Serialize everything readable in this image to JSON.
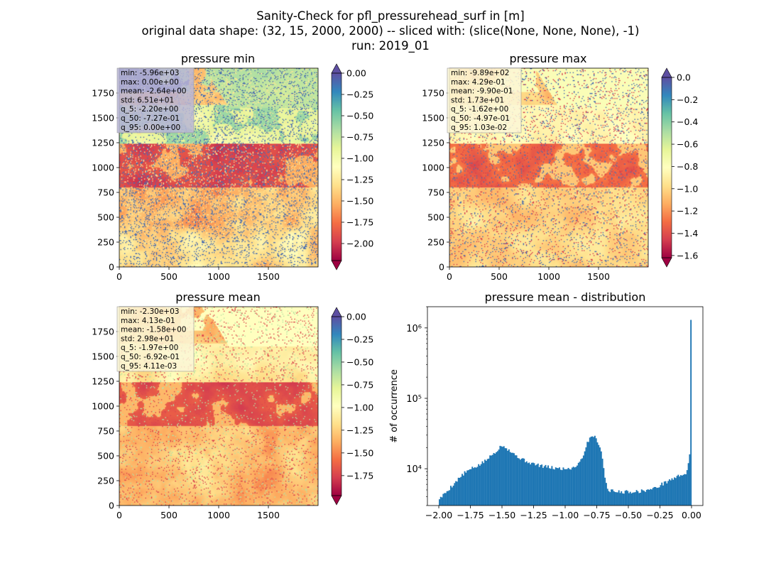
{
  "figure": {
    "title_lines": [
      "Sanity-Check for pfl_pressurehead_surf in [m]",
      "original data shape: (32, 15, 2000, 2000) -- sliced with: (slice(None, None, None), -1)",
      "run: 2019_01"
    ]
  },
  "colors": {
    "map_palette": [
      "#9e0142",
      "#d53e4f",
      "#f46d43",
      "#fdae61",
      "#fee08b",
      "#ffffbf",
      "#e6f598",
      "#abdda4",
      "#66c2a5",
      "#3288bd",
      "#5e4fa2"
    ],
    "histogram_bar": "#1f77b4"
  },
  "chart_data": [
    {
      "type": "heatmap",
      "title": "pressure min",
      "xlim": [
        0,
        2000
      ],
      "ylim": [
        0,
        2000
      ],
      "xticks": [
        0,
        500,
        1000,
        1500
      ],
      "yticks": [
        0,
        250,
        500,
        750,
        1000,
        1250,
        1500,
        1750
      ],
      "colorbar": {
        "vmin": -2.2,
        "vmax": 0.0,
        "ticks": [
          0.0,
          -0.25,
          -0.5,
          -0.75,
          -1.0,
          -1.25,
          -1.5,
          -1.75,
          -2.0
        ],
        "tick_labels": [
          "0.00",
          "−0.25",
          "−0.50",
          "−0.75",
          "−1.00",
          "−1.25",
          "−1.50",
          "−1.75",
          "−2.00"
        ],
        "extend_top_color": "#5e4fa2",
        "extend_bottom_color": "#9e0142"
      },
      "stats": [
        "min: -5.96e+03",
        "max: 0.00e+00",
        "mean: -2.64e+00",
        "std: 6.51e+01",
        "q_5: -2.20e+00",
        "q_50: -7.27e-01",
        "q_95: 0.00e+00"
      ],
      "stats_box_color": "#b8b6d6"
    },
    {
      "type": "heatmap",
      "title": "pressure max",
      "xlim": [
        0,
        2000
      ],
      "ylim": [
        0,
        2000
      ],
      "xticks": [
        0,
        500,
        1000,
        1500
      ],
      "yticks": [
        0,
        250,
        500,
        750,
        1000,
        1250,
        1500,
        1750
      ],
      "colorbar": {
        "vmin": -1.62,
        "vmax": 0.0,
        "ticks": [
          0.0,
          -0.2,
          -0.4,
          -0.6,
          -0.8,
          -1.0,
          -1.2,
          -1.4,
          -1.6
        ],
        "tick_labels": [
          "0.0",
          "−0.2",
          "−0.4",
          "−0.6",
          "−0.8",
          "−1.0",
          "−1.2",
          "−1.4",
          "−1.6"
        ],
        "extend_top_color": "#5e4fa2",
        "extend_bottom_color": "#9e0142"
      },
      "stats": [
        "min: -9.89e+02",
        "max: 4.29e-01",
        "mean: -9.90e-01",
        "std: 1.73e+01",
        "q_5: -1.62e+00",
        "q_50: -4.97e-01",
        "q_95: 1.03e-02"
      ],
      "stats_box_color": "#fbf6d6"
    },
    {
      "type": "heatmap",
      "title": "pressure mean",
      "xlim": [
        0,
        2000
      ],
      "ylim": [
        0,
        2000
      ],
      "xticks": [
        0,
        500,
        1000,
        1500
      ],
      "yticks": [
        0,
        250,
        500,
        750,
        1000,
        1250,
        1500,
        1750
      ],
      "colorbar": {
        "vmin": -1.97,
        "vmax": 0.0,
        "ticks": [
          0.0,
          -0.25,
          -0.5,
          -0.75,
          -1.0,
          -1.25,
          -1.5,
          -1.75
        ],
        "tick_labels": [
          "0.00",
          "−0.25",
          "−0.50",
          "−0.75",
          "−1.00",
          "−1.25",
          "−1.50",
          "−1.75"
        ],
        "extend_top_color": "#5e4fa2",
        "extend_bottom_color": "#9e0142"
      },
      "stats": [
        "min: -2.30e+03",
        "max: 4.13e-01",
        "mean: -1.58e+00",
        "std: 2.98e+01",
        "q_5: -1.97e+00",
        "q_50: -6.92e-01",
        "q_95: 4.11e-03"
      ],
      "stats_box_color": "#fbf6d6"
    },
    {
      "type": "bar",
      "title": "pressure mean - distribution",
      "ylabel": "# of occurrence",
      "xlabel": "",
      "yscale": "log",
      "xlim": [
        -2.09,
        0.09
      ],
      "ylim": [
        3000,
        2000000
      ],
      "xticks": [
        -2.0,
        -1.75,
        -1.5,
        -1.25,
        -1.0,
        -0.75,
        -0.5,
        -0.25,
        0.0
      ],
      "xtick_labels": [
        "−2.00",
        "−1.75",
        "−1.50",
        "−1.25",
        "−1.00",
        "−0.75",
        "−0.50",
        "−0.25",
        "0.00"
      ],
      "yticks": [
        10000,
        100000,
        1000000
      ],
      "ytick_labels": [
        "10⁴",
        "10⁵",
        "10⁶"
      ],
      "bin_width": 0.01,
      "curve": [
        [
          -1.99,
          3800
        ],
        [
          -1.96,
          4300
        ],
        [
          -1.93,
          4900
        ],
        [
          -1.9,
          5600
        ],
        [
          -1.85,
          7000
        ],
        [
          -1.8,
          8600
        ],
        [
          -1.75,
          9800
        ],
        [
          -1.7,
          10800
        ],
        [
          -1.65,
          12200
        ],
        [
          -1.6,
          14500
        ],
        [
          -1.55,
          17500
        ],
        [
          -1.52,
          20000
        ],
        [
          -1.5,
          21800
        ],
        [
          -1.47,
          20200
        ],
        [
          -1.43,
          17500
        ],
        [
          -1.38,
          15000
        ],
        [
          -1.33,
          13300
        ],
        [
          -1.28,
          12200
        ],
        [
          -1.23,
          11400
        ],
        [
          -1.18,
          10900
        ],
        [
          -1.12,
          10400
        ],
        [
          -1.06,
          10100
        ],
        [
          -1.0,
          10000
        ],
        [
          -0.95,
          10200
        ],
        [
          -0.9,
          11500
        ],
        [
          -0.86,
          15000
        ],
        [
          -0.83,
          22000
        ],
        [
          -0.8,
          28500
        ],
        [
          -0.78,
          30000
        ],
        [
          -0.75,
          26000
        ],
        [
          -0.72,
          20000
        ],
        [
          -0.7,
          12000
        ],
        [
          -0.68,
          6500
        ],
        [
          -0.66,
          5000
        ],
        [
          -0.6,
          4700
        ],
        [
          -0.5,
          4700
        ],
        [
          -0.4,
          4800
        ],
        [
          -0.3,
          5200
        ],
        [
          -0.25,
          5800
        ],
        [
          -0.2,
          6500
        ],
        [
          -0.15,
          7200
        ],
        [
          -0.1,
          7900
        ],
        [
          -0.05,
          8600
        ],
        [
          -0.03,
          9200
        ],
        [
          -0.01,
          9800
        ]
      ],
      "spikes": [
        {
          "x": -0.02,
          "y": 12000
        },
        {
          "x": -0.01,
          "y": 16000
        },
        {
          "x": 0.0,
          "y": 1300000
        }
      ]
    }
  ]
}
